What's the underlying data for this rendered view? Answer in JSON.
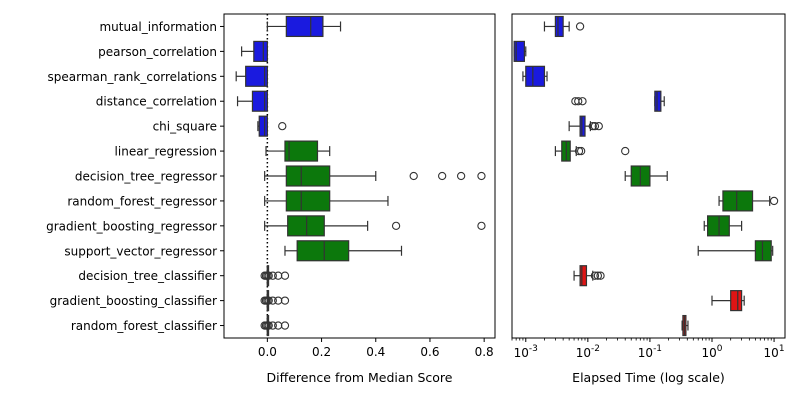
{
  "chart_data": [
    {
      "type": "box",
      "orientation": "horizontal",
      "xlabel": "Difference from Median Score",
      "ylabel": "",
      "xlim": [
        -0.16,
        0.84
      ],
      "x_ticks": [
        0.0,
        0.2,
        0.4,
        0.6,
        0.8
      ],
      "x_tick_labels": [
        "0.0",
        "0.2",
        "0.4",
        "0.6",
        "0.8"
      ],
      "reference_line": {
        "x": 0.0,
        "style": "dotted"
      },
      "categories": [
        "mutual_information",
        "pearson_correlation",
        "spearman_rank_correlations",
        "distance_correlation",
        "chi_square",
        "linear_regression",
        "decision_tree_regressor",
        "random_forest_regressor",
        "gradient_boosting_regressor",
        "support_vector_regressor",
        "decision_tree_classifier",
        "gradient_boosting_classifier",
        "random_forest_classifier"
      ],
      "boxes": [
        {
          "color": "blue",
          "whislo": 0.0,
          "q1": 0.07,
          "med": 0.16,
          "q3": 0.205,
          "whishi": 0.27,
          "fliers": []
        },
        {
          "color": "blue",
          "whislo": -0.095,
          "q1": -0.05,
          "med": -0.015,
          "q3": 0.0,
          "whishi": 0.0,
          "fliers": []
        },
        {
          "color": "blue",
          "whislo": -0.115,
          "q1": -0.08,
          "med": -0.01,
          "q3": 0.0,
          "whishi": 0.0,
          "fliers": []
        },
        {
          "color": "blue",
          "whislo": -0.11,
          "q1": -0.055,
          "med": -0.01,
          "q3": 0.0,
          "whishi": 0.0,
          "fliers": []
        },
        {
          "color": "blue",
          "whislo": -0.035,
          "q1": -0.03,
          "med": -0.01,
          "q3": 0.0,
          "whishi": 0.0,
          "fliers": [
            0.055
          ]
        },
        {
          "color": "green",
          "whislo": -0.005,
          "q1": 0.065,
          "med": 0.08,
          "q3": 0.185,
          "whishi": 0.23,
          "fliers": []
        },
        {
          "color": "green",
          "whislo": -0.01,
          "q1": 0.07,
          "med": 0.125,
          "q3": 0.23,
          "whishi": 0.4,
          "fliers": [
            0.54,
            0.645,
            0.715,
            0.79
          ]
        },
        {
          "color": "green",
          "whislo": -0.01,
          "q1": 0.07,
          "med": 0.125,
          "q3": 0.23,
          "whishi": 0.445,
          "fliers": []
        },
        {
          "color": "green",
          "whislo": -0.01,
          "q1": 0.075,
          "med": 0.145,
          "q3": 0.21,
          "whishi": 0.37,
          "fliers": [
            0.475,
            0.79
          ]
        },
        {
          "color": "green",
          "whislo": 0.065,
          "q1": 0.11,
          "med": 0.21,
          "q3": 0.3,
          "whishi": 0.495,
          "fliers": []
        },
        {
          "color": "red",
          "whislo": 0.0,
          "q1": 0.0,
          "med": 0.0,
          "q3": 0.0,
          "whishi": 0.0,
          "fliers": [
            -0.01,
            -0.005,
            0.0,
            0.005,
            0.02,
            0.04,
            0.065
          ]
        },
        {
          "color": "red",
          "whislo": 0.0,
          "q1": 0.0,
          "med": 0.0,
          "q3": 0.0,
          "whishi": 0.0,
          "fliers": [
            -0.01,
            -0.005,
            0.0,
            0.005,
            0.02,
            0.04,
            0.065
          ]
        },
        {
          "color": "red",
          "whislo": 0.0,
          "q1": 0.0,
          "med": 0.0,
          "q3": 0.0,
          "whishi": 0.0,
          "fliers": [
            -0.01,
            -0.005,
            0.0,
            0.005,
            0.02,
            0.04,
            0.065
          ]
        }
      ]
    },
    {
      "type": "box",
      "orientation": "horizontal",
      "xlabel": "Elapsed Time (log scale)",
      "ylabel": "",
      "x_scale": "log",
      "xlim": [
        0.0006,
        15
      ],
      "x_ticks": [
        0.001,
        0.01,
        0.1,
        1,
        10
      ],
      "x_tick_labels": [
        "10-3",
        "10-2",
        "10-1",
        "100",
        "101"
      ],
      "categories": [
        "mutual_information",
        "pearson_correlation",
        "spearman_rank_correlations",
        "distance_correlation",
        "chi_square",
        "linear_regression",
        "decision_tree_regressor",
        "random_forest_regressor",
        "gradient_boosting_regressor",
        "support_vector_regressor",
        "decision_tree_classifier",
        "gradient_boosting_classifier",
        "random_forest_classifier"
      ],
      "boxes": [
        {
          "color": "blue",
          "whislo": 0.002,
          "q1": 0.003,
          "med": 0.0033,
          "q3": 0.004,
          "whishi": 0.005,
          "fliers": [
            0.0075
          ]
        },
        {
          "color": "blue",
          "whislo": 0.00065,
          "q1": 0.00065,
          "med": 0.0007,
          "q3": 0.00095,
          "whishi": 0.001,
          "fliers": []
        },
        {
          "color": "blue",
          "whislo": 0.0009,
          "q1": 0.001,
          "med": 0.0013,
          "q3": 0.002,
          "whishi": 0.0022,
          "fliers": []
        },
        {
          "color": "blue",
          "whislo": 0.12,
          "q1": 0.12,
          "med": 0.13,
          "q3": 0.15,
          "whishi": 0.17,
          "fliers": [
            0.0063,
            0.007,
            0.0082
          ]
        },
        {
          "color": "blue",
          "whislo": 0.005,
          "q1": 0.0075,
          "med": 0.008,
          "q3": 0.009,
          "whishi": 0.011,
          "fliers": [
            0.012,
            0.013,
            0.015
          ]
        },
        {
          "color": "green",
          "whislo": 0.003,
          "q1": 0.0038,
          "med": 0.0045,
          "q3": 0.0052,
          "whishi": 0.0065,
          "fliers": [
            0.0072,
            0.0078,
            0.04
          ]
        },
        {
          "color": "green",
          "whislo": 0.04,
          "q1": 0.05,
          "med": 0.07,
          "q3": 0.1,
          "whishi": 0.19,
          "fliers": []
        },
        {
          "color": "green",
          "whislo": 1.3,
          "q1": 1.5,
          "med": 2.5,
          "q3": 4.5,
          "whishi": 8.5,
          "fliers": [
            10
          ]
        },
        {
          "color": "green",
          "whislo": 0.75,
          "q1": 0.85,
          "med": 1.3,
          "q3": 1.9,
          "whishi": 3.0,
          "fliers": []
        },
        {
          "color": "green",
          "whislo": 0.6,
          "q1": 5.0,
          "med": 6.5,
          "q3": 9.0,
          "whishi": 9.5,
          "fliers": []
        },
        {
          "color": "red",
          "whislo": 0.006,
          "q1": 0.0075,
          "med": 0.008,
          "q3": 0.0095,
          "whishi": 0.012,
          "fliers": [
            0.013,
            0.0145,
            0.016
          ]
        },
        {
          "color": "red",
          "whislo": 1.0,
          "q1": 2.0,
          "med": 2.6,
          "q3": 3.0,
          "whishi": 3.3,
          "fliers": []
        },
        {
          "color": "red",
          "whislo": 0.33,
          "q1": 0.34,
          "med": 0.36,
          "q3": 0.38,
          "whishi": 0.41,
          "fliers": []
        }
      ]
    }
  ],
  "colors": {
    "blue": "#1a1adf",
    "green": "#0c780c",
    "red": "#e01414",
    "edge": "#333333"
  }
}
